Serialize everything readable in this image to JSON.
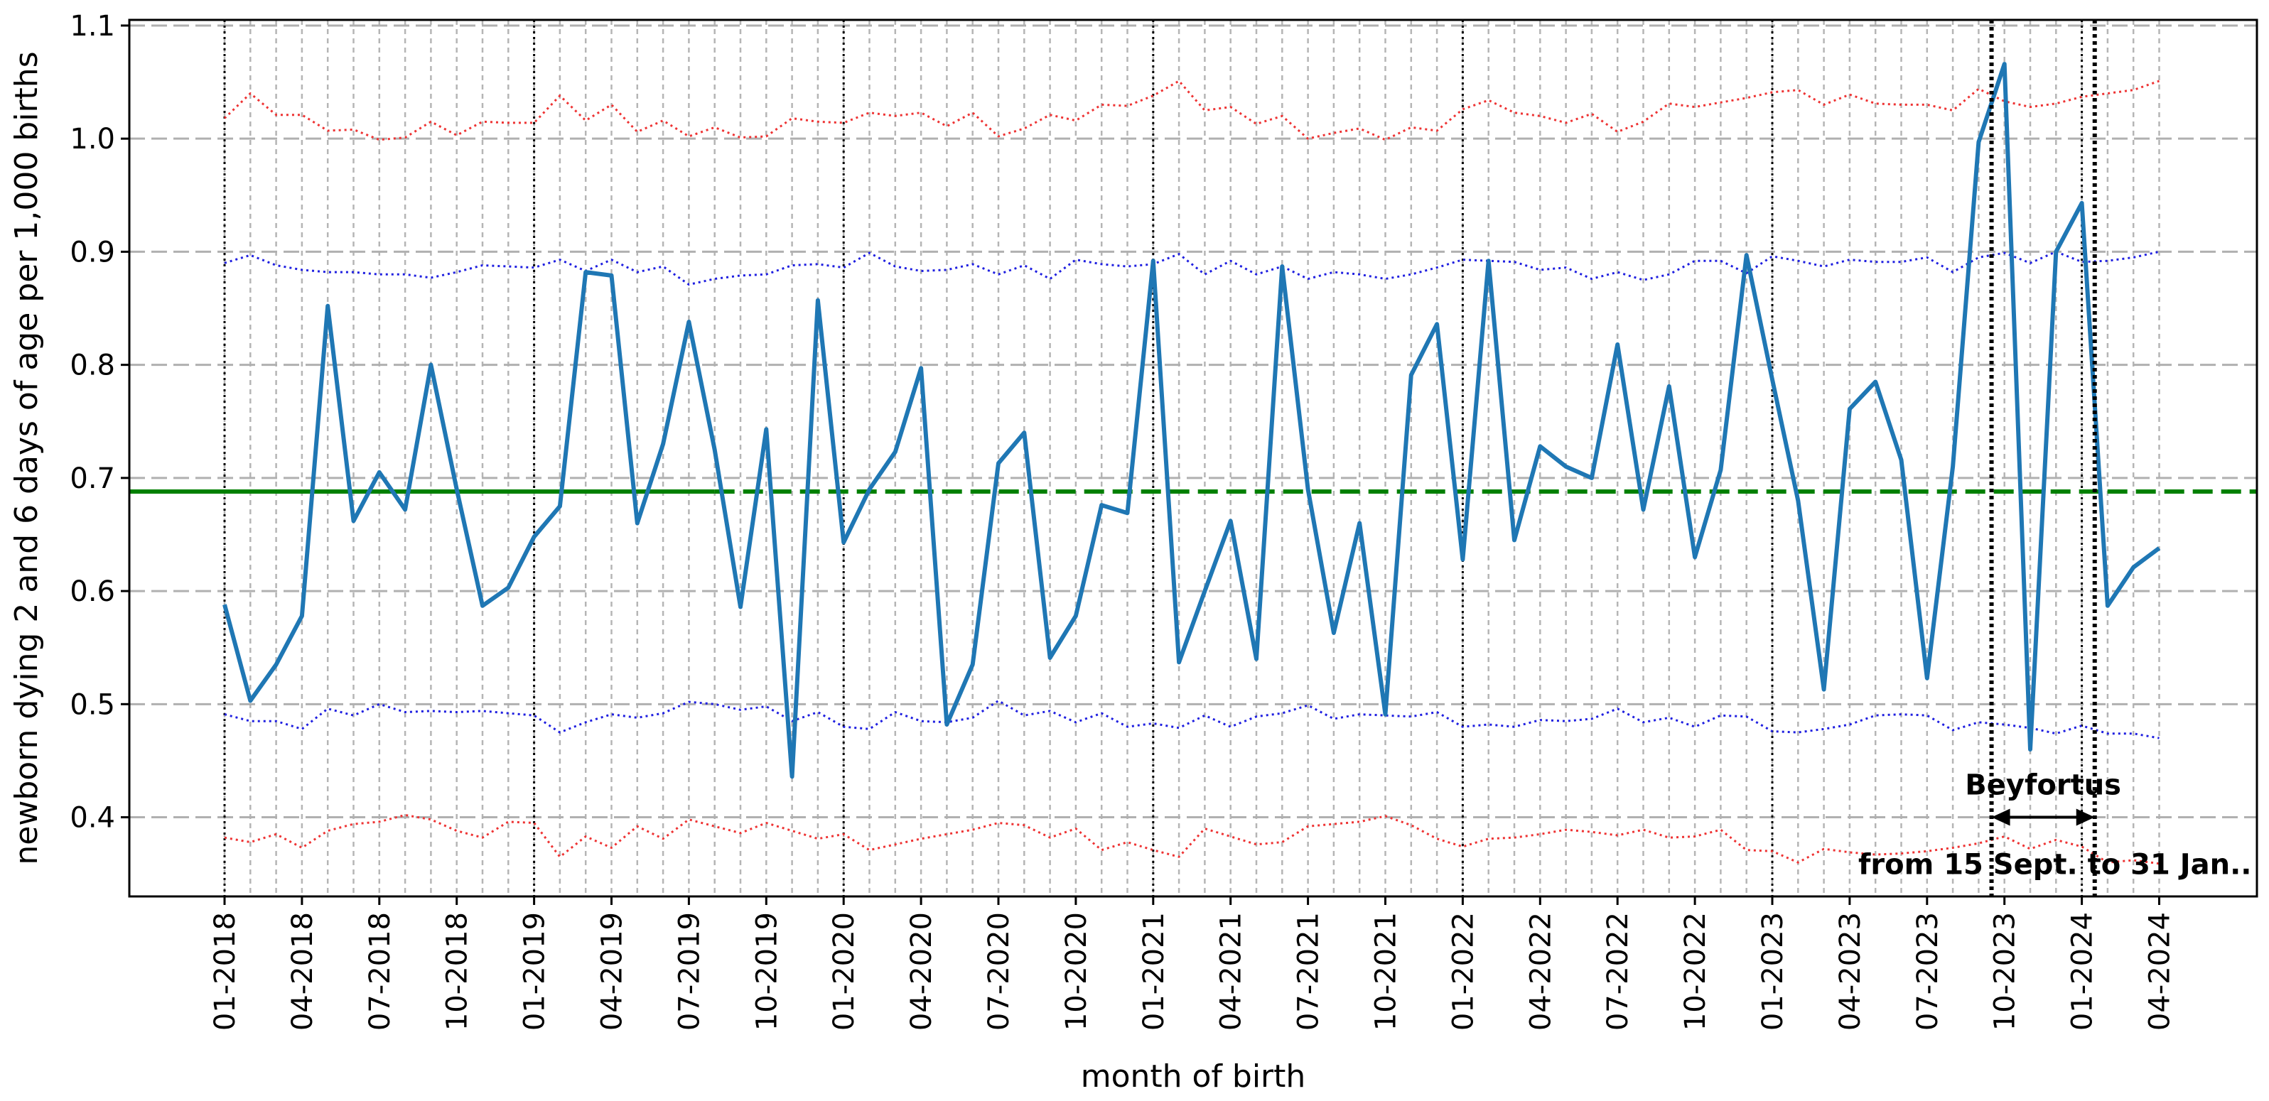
{
  "chart_data": {
    "type": "line",
    "xlabel": "month of birth",
    "ylabel": "newborn dying 2 and 6 days of age per 1,000 births",
    "ylim": [
      0.33,
      1.105
    ],
    "yticks": [
      0.4,
      0.5,
      0.6,
      0.7,
      0.8,
      0.9,
      1.0,
      1.1
    ],
    "ytick_labels": [
      "0.4",
      "0.5",
      "0.6",
      "0.7",
      "0.8",
      "0.9",
      "1.0",
      "1.1"
    ],
    "x_months": [
      "01-2018",
      "02-2018",
      "03-2018",
      "04-2018",
      "05-2018",
      "06-2018",
      "07-2018",
      "08-2018",
      "09-2018",
      "10-2018",
      "11-2018",
      "12-2018",
      "01-2019",
      "02-2019",
      "03-2019",
      "04-2019",
      "05-2019",
      "06-2019",
      "07-2019",
      "08-2019",
      "09-2019",
      "10-2019",
      "11-2019",
      "12-2019",
      "01-2020",
      "02-2020",
      "03-2020",
      "04-2020",
      "05-2020",
      "06-2020",
      "07-2020",
      "08-2020",
      "09-2020",
      "10-2020",
      "11-2020",
      "12-2020",
      "01-2021",
      "02-2021",
      "03-2021",
      "04-2021",
      "05-2021",
      "06-2021",
      "07-2021",
      "08-2021",
      "09-2021",
      "10-2021",
      "11-2021",
      "12-2021",
      "01-2022",
      "02-2022",
      "03-2022",
      "04-2022",
      "05-2022",
      "06-2022",
      "07-2022",
      "08-2022",
      "09-2022",
      "10-2022",
      "11-2022",
      "12-2022",
      "01-2023",
      "02-2023",
      "03-2023",
      "04-2023",
      "05-2023",
      "06-2023",
      "07-2023",
      "08-2023",
      "09-2023",
      "10-2023",
      "11-2023",
      "12-2023",
      "01-2024",
      "02-2024",
      "03-2024",
      "04-2024"
    ],
    "xtick_labels": [
      "01-2018",
      "04-2018",
      "07-2018",
      "10-2018",
      "01-2019",
      "04-2019",
      "07-2019",
      "10-2019",
      "01-2020",
      "04-2020",
      "07-2020",
      "10-2020",
      "01-2021",
      "04-2021",
      "07-2021",
      "10-2021",
      "01-2022",
      "04-2022",
      "07-2022",
      "10-2022",
      "01-2023",
      "04-2023",
      "07-2023",
      "10-2023",
      "01-2024",
      "04-2024"
    ],
    "year_boundaries": [
      "01-2018",
      "01-2019",
      "01-2020",
      "01-2021",
      "01-2022",
      "01-2023",
      "01-2024"
    ],
    "mean_line": {
      "value": 0.688,
      "solid_until": "08-2019",
      "color": "#008000"
    },
    "series": [
      {
        "style": "solid",
        "color": "#1f77b4",
        "values": [
          0.588,
          0.503,
          0.535,
          0.578,
          0.852,
          0.662,
          0.705,
          0.672,
          0.8,
          0.69,
          0.587,
          0.603,
          0.648,
          0.675,
          0.882,
          0.879,
          0.66,
          0.73,
          0.838,
          0.725,
          0.586,
          0.743,
          0.436,
          0.857,
          0.643,
          0.69,
          0.723,
          0.797,
          0.482,
          0.535,
          0.713,
          0.74,
          0.541,
          0.578,
          0.676,
          0.669,
          0.892,
          0.537,
          0.6,
          0.662,
          0.54,
          0.887,
          0.69,
          0.563,
          0.66,
          0.491,
          0.791,
          0.836,
          0.628,
          0.892,
          0.645,
          0.728,
          0.71,
          0.7,
          0.818,
          0.672,
          0.781,
          0.63,
          0.707,
          0.897,
          0.787,
          0.68,
          0.513,
          0.761,
          0.785,
          0.716,
          0.523,
          0.71,
          0.997,
          1.066,
          0.46,
          0.9,
          0.943,
          0.587,
          0.621,
          0.638
        ]
      },
      {
        "style": "dotted",
        "color": "#1f1fe0",
        "values": [
          0.89,
          0.897,
          0.888,
          0.884,
          0.882,
          0.882,
          0.88,
          0.88,
          0.877,
          0.882,
          0.888,
          0.887,
          0.886,
          0.893,
          0.883,
          0.893,
          0.882,
          0.887,
          0.871,
          0.876,
          0.879,
          0.88,
          0.888,
          0.889,
          0.886,
          0.899,
          0.887,
          0.883,
          0.884,
          0.889,
          0.88,
          0.888,
          0.876,
          0.893,
          0.889,
          0.887,
          0.889,
          0.898,
          0.88,
          0.892,
          0.88,
          0.887,
          0.876,
          0.882,
          0.88,
          0.876,
          0.88,
          0.886,
          0.893,
          0.892,
          0.891,
          0.884,
          0.886,
          0.876,
          0.882,
          0.875,
          0.88,
          0.892,
          0.892,
          0.881,
          0.896,
          0.892,
          0.887,
          0.893,
          0.891,
          0.891,
          0.895,
          0.882,
          0.895,
          0.899,
          0.89,
          0.9,
          0.891,
          0.892,
          0.895,
          0.9
        ]
      },
      {
        "style": "dotted",
        "color": "#1f1fe0",
        "values": [
          0.491,
          0.485,
          0.485,
          0.478,
          0.496,
          0.49,
          0.5,
          0.493,
          0.494,
          0.493,
          0.494,
          0.492,
          0.49,
          0.475,
          0.484,
          0.491,
          0.488,
          0.492,
          0.502,
          0.5,
          0.495,
          0.498,
          0.485,
          0.493,
          0.48,
          0.478,
          0.493,
          0.485,
          0.484,
          0.488,
          0.503,
          0.49,
          0.494,
          0.484,
          0.492,
          0.48,
          0.483,
          0.479,
          0.49,
          0.48,
          0.489,
          0.492,
          0.499,
          0.487,
          0.491,
          0.49,
          0.489,
          0.493,
          0.48,
          0.482,
          0.48,
          0.486,
          0.485,
          0.487,
          0.496,
          0.484,
          0.488,
          0.48,
          0.49,
          0.489,
          0.476,
          0.475,
          0.478,
          0.482,
          0.49,
          0.491,
          0.49,
          0.477,
          0.484,
          0.482,
          0.479,
          0.474,
          0.481,
          0.474,
          0.474,
          0.47
        ]
      },
      {
        "style": "dotted",
        "color": "#ee3333",
        "values": [
          1.018,
          1.04,
          1.021,
          1.021,
          1.007,
          1.008,
          0.999,
          1.001,
          1.015,
          1.003,
          1.015,
          1.014,
          1.014,
          1.038,
          1.016,
          1.03,
          1.006,
          1.016,
          1.002,
          1.01,
          1.001,
          1.002,
          1.018,
          1.015,
          1.014,
          1.023,
          1.02,
          1.023,
          1.011,
          1.023,
          1.002,
          1.009,
          1.021,
          1.016,
          1.03,
          1.029,
          1.038,
          1.051,
          1.025,
          1.028,
          1.013,
          1.02,
          1.0,
          1.005,
          1.009,
          0.999,
          1.01,
          1.007,
          1.026,
          1.034,
          1.023,
          1.02,
          1.014,
          1.022,
          1.006,
          1.015,
          1.031,
          1.028,
          1.032,
          1.036,
          1.041,
          1.043,
          1.03,
          1.039,
          1.031,
          1.03,
          1.03,
          1.025,
          1.044,
          1.033,
          1.028,
          1.031,
          1.037,
          1.04,
          1.043,
          1.051
        ]
      },
      {
        "style": "dotted",
        "color": "#ee3333",
        "values": [
          0.382,
          0.378,
          0.385,
          0.373,
          0.388,
          0.394,
          0.396,
          0.402,
          0.398,
          0.388,
          0.382,
          0.396,
          0.395,
          0.365,
          0.383,
          0.373,
          0.392,
          0.381,
          0.398,
          0.392,
          0.386,
          0.395,
          0.388,
          0.381,
          0.385,
          0.371,
          0.376,
          0.381,
          0.385,
          0.389,
          0.395,
          0.393,
          0.382,
          0.39,
          0.371,
          0.378,
          0.371,
          0.365,
          0.39,
          0.383,
          0.376,
          0.378,
          0.392,
          0.394,
          0.396,
          0.401,
          0.393,
          0.381,
          0.374,
          0.381,
          0.382,
          0.385,
          0.389,
          0.387,
          0.384,
          0.389,
          0.382,
          0.383,
          0.389,
          0.371,
          0.37,
          0.36,
          0.372,
          0.369,
          0.367,
          0.368,
          0.37,
          0.373,
          0.377,
          0.383,
          0.372,
          0.38,
          0.374,
          0.36,
          0.362,
          0.359
        ]
      }
    ],
    "annotation": {
      "label": "Beyfortus",
      "sublabel": "from 15 Sept.  to 31 Jan..",
      "start": 68.5,
      "end": 72.5,
      "arrow_y": 0.4
    },
    "grid": true
  }
}
